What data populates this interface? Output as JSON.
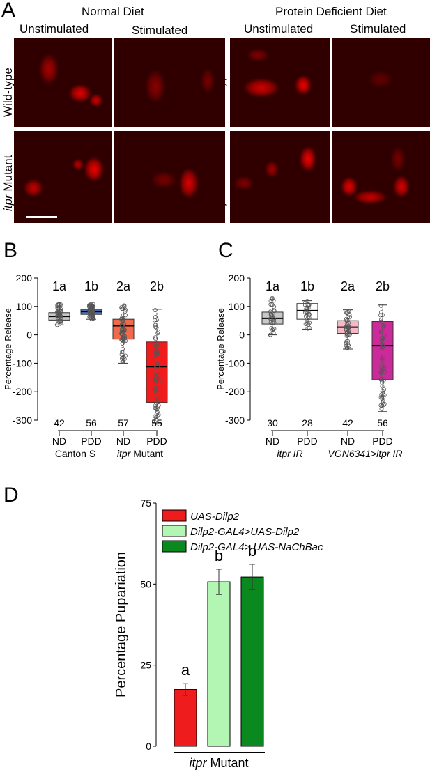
{
  "panel_labels": {
    "a": "A",
    "b": "B",
    "c": "C",
    "d": "D"
  },
  "panel_a": {
    "diet_headers": [
      "Normal Diet",
      "Protein Deficient Diet"
    ],
    "condition_headers": [
      "Unstimulated",
      "Stimulated",
      "Unstimulated",
      "Stimulated"
    ],
    "row_labels": [
      {
        "italic": "",
        "rest": "Wild-type"
      },
      {
        "italic": "itpr",
        "rest": " Mutant"
      }
    ],
    "image_color": "#ff0000"
  },
  "chart_data": [
    {
      "type": "box",
      "panel": "B",
      "ylabel": "Percentage Release",
      "ylim": [
        -300,
        200
      ],
      "yticks": [
        200,
        100,
        0,
        -100,
        -200,
        -300
      ],
      "categories": [
        "ND",
        "PDD",
        "ND",
        "PDD"
      ],
      "groups": [
        {
          "label": "Canton S",
          "italic": "",
          "rest": "Canton S"
        },
        {
          "label": "itpr Mutant",
          "italic": "itpr",
          "rest": " Mutant"
        }
      ],
      "sig_letters": [
        "1a",
        "1b",
        "2a",
        "2b"
      ],
      "n": [
        "42",
        "56",
        "57",
        "55"
      ],
      "colors": [
        "#c8c8c8",
        "#4a6fb5",
        "#f06a4a",
        "#ee1c1c"
      ],
      "boxes": [
        {
          "whisker_low": 35,
          "q1": 52,
          "median": 65,
          "q3": 78,
          "whisker_high": 108
        },
        {
          "whisker_low": 55,
          "q1": 72,
          "median": 82,
          "q3": 90,
          "whisker_high": 108
        },
        {
          "whisker_low": -100,
          "q1": -15,
          "median": 32,
          "q3": 55,
          "whisker_high": 108
        },
        {
          "whisker_low": -310,
          "q1": -238,
          "median": -112,
          "q3": -25,
          "whisker_high": 90
        }
      ]
    },
    {
      "type": "box",
      "panel": "C",
      "ylabel": "Percentage Release",
      "ylim": [
        -300,
        200
      ],
      "yticks": [
        200,
        100,
        0,
        -100,
        -200,
        -300
      ],
      "categories": [
        "ND",
        "PDD",
        "ND",
        "PDD"
      ],
      "groups": [
        {
          "label": "itpr IR",
          "italic": "itpr IR",
          "rest": ""
        },
        {
          "label": "VGN6341>itpr IR",
          "italic": "VGN6341>itpr IR",
          "rest": ""
        }
      ],
      "sig_letters": [
        "1a",
        "1b",
        "2a",
        "2b"
      ],
      "n": [
        "30",
        "28",
        "42",
        "56"
      ],
      "colors": [
        "#c8c8c8",
        "#ffffff",
        "#f5b8c4",
        "#cc2a9a"
      ],
      "boxes": [
        {
          "whisker_low": 0,
          "q1": 38,
          "median": 58,
          "q3": 80,
          "whisker_high": 130
        },
        {
          "whisker_low": 20,
          "q1": 55,
          "median": 85,
          "q3": 110,
          "whisker_high": 120
        },
        {
          "whisker_low": -50,
          "q1": 5,
          "median": 27,
          "q3": 50,
          "whisker_high": 88
        },
        {
          "whisker_low": -270,
          "q1": -158,
          "median": -38,
          "q3": 47,
          "whisker_high": 105
        }
      ]
    },
    {
      "type": "bar",
      "panel": "D",
      "ylabel": "Percentage Pupariation",
      "ylim": [
        0,
        75
      ],
      "yticks": [
        0,
        25,
        50,
        75
      ],
      "xlabel": {
        "italic": "itpr",
        "rest": " Mutant"
      },
      "series": [
        {
          "name": "UAS-Dilp2",
          "value": 17.5,
          "error": 1.8,
          "color": "#ee1c1c",
          "sig": "a"
        },
        {
          "name": "Dilp2-GAL4>UAS-Dilp2",
          "value": 50.7,
          "error": 3.9,
          "color": "#b3f5b3",
          "sig": "b"
        },
        {
          "name": "Dilp2-GAL4> UAS-NaChBac",
          "value": 52.2,
          "error": 3.9,
          "color": "#0a8a1e",
          "sig": "b"
        }
      ]
    }
  ]
}
